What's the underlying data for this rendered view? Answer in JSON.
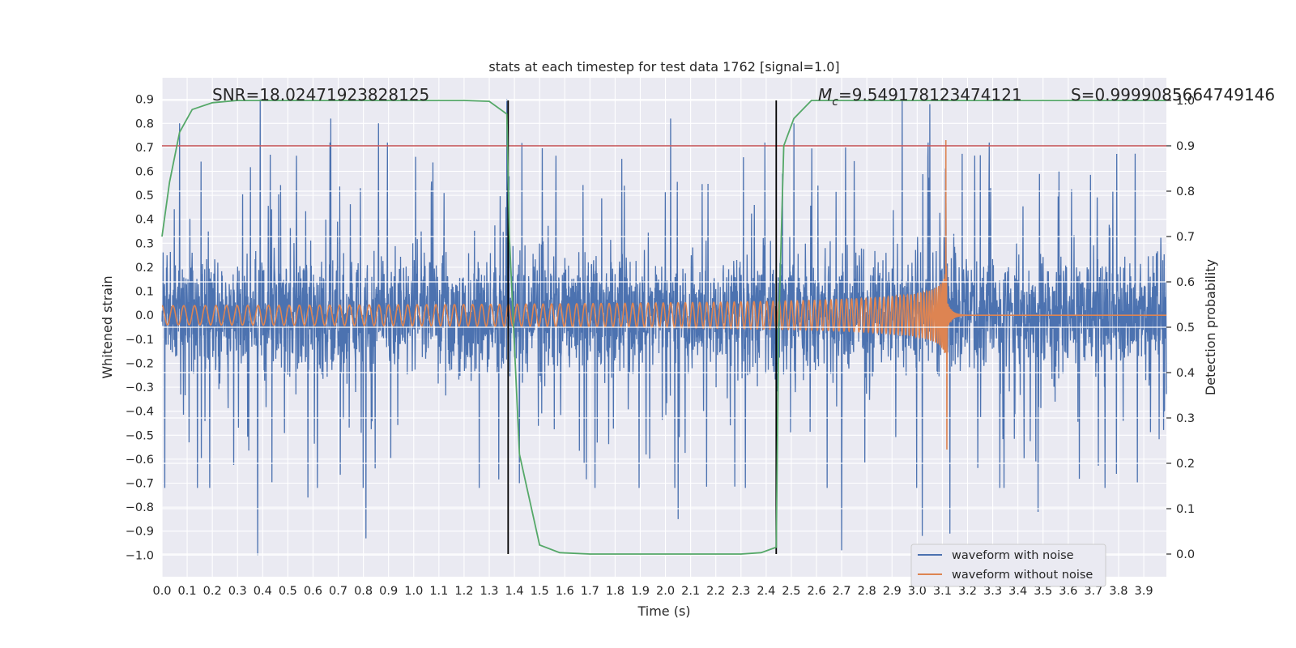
{
  "chart_data": {
    "type": "line",
    "title": "stats at each timestep for test data 1762 [signal=1.0]",
    "xlabel": "Time (s)",
    "ylabel_left": "Whitened strain",
    "ylabel_right": "Detection probability",
    "xlim": [
      0.0,
      3.99
    ],
    "ylim_left": [
      -1.09,
      0.99
    ],
    "ylim_right": [
      -0.05,
      1.05
    ],
    "x_ticks": [
      "0.0",
      "0.1",
      "0.2",
      "0.3",
      "0.4",
      "0.5",
      "0.6",
      "0.7",
      "0.8",
      "0.9",
      "1.0",
      "1.1",
      "1.2",
      "1.3",
      "1.4",
      "1.5",
      "1.6",
      "1.7",
      "1.8",
      "1.9",
      "2.0",
      "2.1",
      "2.2",
      "2.3",
      "2.4",
      "2.5",
      "2.6",
      "2.7",
      "2.8",
      "2.9",
      "3.0",
      "3.1",
      "3.2",
      "3.3",
      "3.4",
      "3.5",
      "3.6",
      "3.7",
      "3.8",
      "3.9"
    ],
    "y_ticks_left": [
      "0.9",
      "0.8",
      "0.7",
      "0.6",
      "0.5",
      "0.4",
      "0.3",
      "0.2",
      "0.1",
      "0.0",
      "−0.1",
      "−0.2",
      "−0.3",
      "−0.4",
      "−0.5",
      "−0.6",
      "−0.7",
      "−0.8",
      "−0.9",
      "−1.0"
    ],
    "y_ticks_right": [
      "1.0",
      "0.9",
      "0.8",
      "0.7",
      "0.6",
      "0.5",
      "0.4",
      "0.3",
      "0.2",
      "0.1",
      "0.0"
    ],
    "annotations": {
      "snr": "SNR=18.02471923828125",
      "mc_symbol": "M",
      "mc_sub": "c",
      "mc_value": "=9.549178123474121",
      "s": "S=0.9999085664749146"
    },
    "legend": [
      "waveform with noise",
      "waveform without noise"
    ],
    "colors": {
      "noisy": "#4c72b0",
      "clean": "#dd8452",
      "probability": "#55a868",
      "threshold": "#c44e52",
      "vlines": "#000000",
      "background": "#eaeaf2",
      "grid": "#ffffff"
    },
    "threshold_probability": 0.9,
    "vertical_lines_time": [
      1.375,
      2.44
    ],
    "noisy_waveform": {
      "time_range": [
        0.0,
        3.99
      ],
      "min": -1.0,
      "max": 0.9,
      "peaks_time": [
        0.07,
        0.39,
        0.67,
        0.86,
        1.37,
        2.02,
        2.51,
        2.94,
        3.05,
        3.13
      ],
      "peaks_value": [
        0.8,
        0.9,
        0.82,
        0.8,
        0.9,
        0.82,
        0.8,
        0.9,
        0.88,
        0.85
      ],
      "troughs_time": [
        0.38,
        0.58,
        0.81,
        1.42,
        2.05,
        2.7,
        3.02,
        3.13,
        3.48
      ],
      "troughs_value": [
        -1.0,
        -0.76,
        -0.93,
        -0.7,
        -0.85,
        -0.98,
        -0.92,
        -0.91,
        -0.82
      ]
    },
    "clean_waveform": {
      "time_range": [
        0.0,
        3.99
      ],
      "coalescence_time": 3.12,
      "amplitude_start": 0.04,
      "amplitude_peak": 0.73,
      "amplitude_min": -0.56,
      "frequency_start_hz": 23,
      "frequency_end_hz": 220
    },
    "probability_series": {
      "x": [
        0.0,
        0.03,
        0.07,
        0.12,
        0.2,
        0.3,
        0.5,
        0.8,
        1.0,
        1.2,
        1.3,
        1.37,
        1.38,
        1.42,
        1.5,
        1.58,
        1.7,
        2.0,
        2.3,
        2.38,
        2.44,
        2.45,
        2.47,
        2.51,
        2.58,
        2.7,
        3.0,
        3.3,
        3.6,
        3.9,
        3.99
      ],
      "y": [
        0.7,
        0.82,
        0.93,
        0.98,
        0.995,
        1.0,
        1.0,
        1.0,
        1.0,
        1.0,
        0.998,
        0.97,
        0.7,
        0.22,
        0.02,
        0.003,
        0.0,
        0.0,
        0.0,
        0.003,
        0.015,
        0.5,
        0.9,
        0.96,
        1.0,
        1.0,
        1.0,
        1.0,
        1.0,
        1.0,
        1.0
      ]
    }
  }
}
